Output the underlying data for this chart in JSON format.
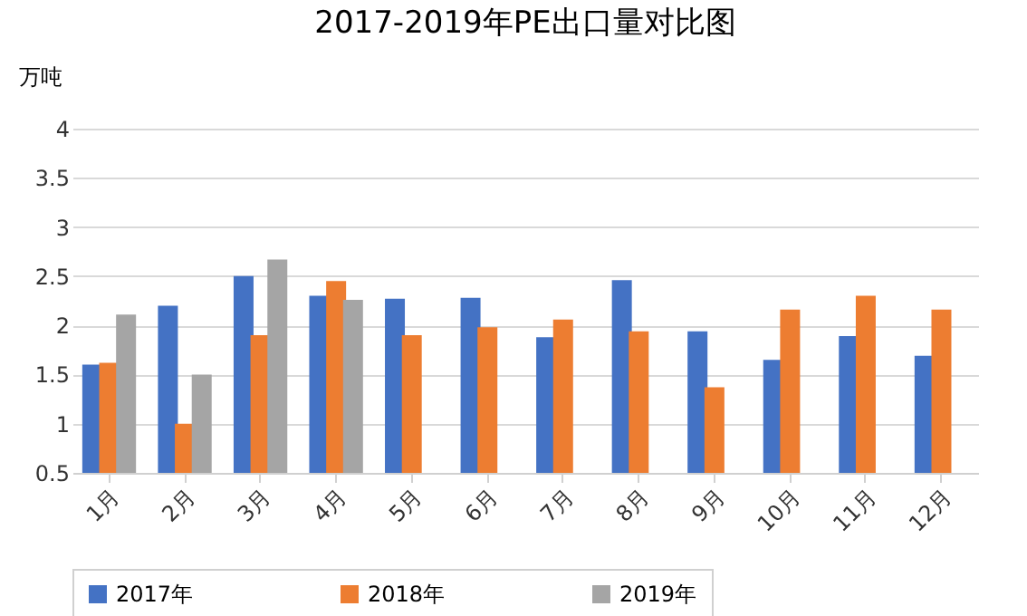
{
  "chart_data": {
    "type": "bar",
    "title": "2017-2019年PE出口量对比图",
    "ylabel": "万吨",
    "categories": [
      "1月",
      "2月",
      "3月",
      "4月",
      "5月",
      "6月",
      "7月",
      "8月",
      "9月",
      "10月",
      "11月",
      "12月"
    ],
    "series": [
      {
        "name": "2017年",
        "color": "#4472c4",
        "values": [
          1.6,
          2.2,
          2.5,
          2.3,
          2.27,
          2.28,
          1.88,
          2.46,
          1.94,
          1.65,
          1.89,
          1.69
        ]
      },
      {
        "name": "2018年",
        "color": "#ed7d31",
        "values": [
          1.62,
          1.0,
          1.9,
          2.45,
          1.9,
          1.98,
          2.06,
          1.94,
          1.37,
          2.16,
          2.3,
          2.16
        ]
      },
      {
        "name": "2019年",
        "color": "#a5a5a5",
        "values": [
          2.11,
          1.5,
          2.67,
          2.26,
          null,
          null,
          null,
          null,
          null,
          null,
          null,
          null
        ]
      }
    ],
    "ylim": [
      0.5,
      4
    ],
    "yticks": [
      0.5,
      1,
      1.5,
      2,
      2.5,
      3,
      3.5,
      4
    ],
    "grid": "y",
    "legend": "bottom"
  }
}
